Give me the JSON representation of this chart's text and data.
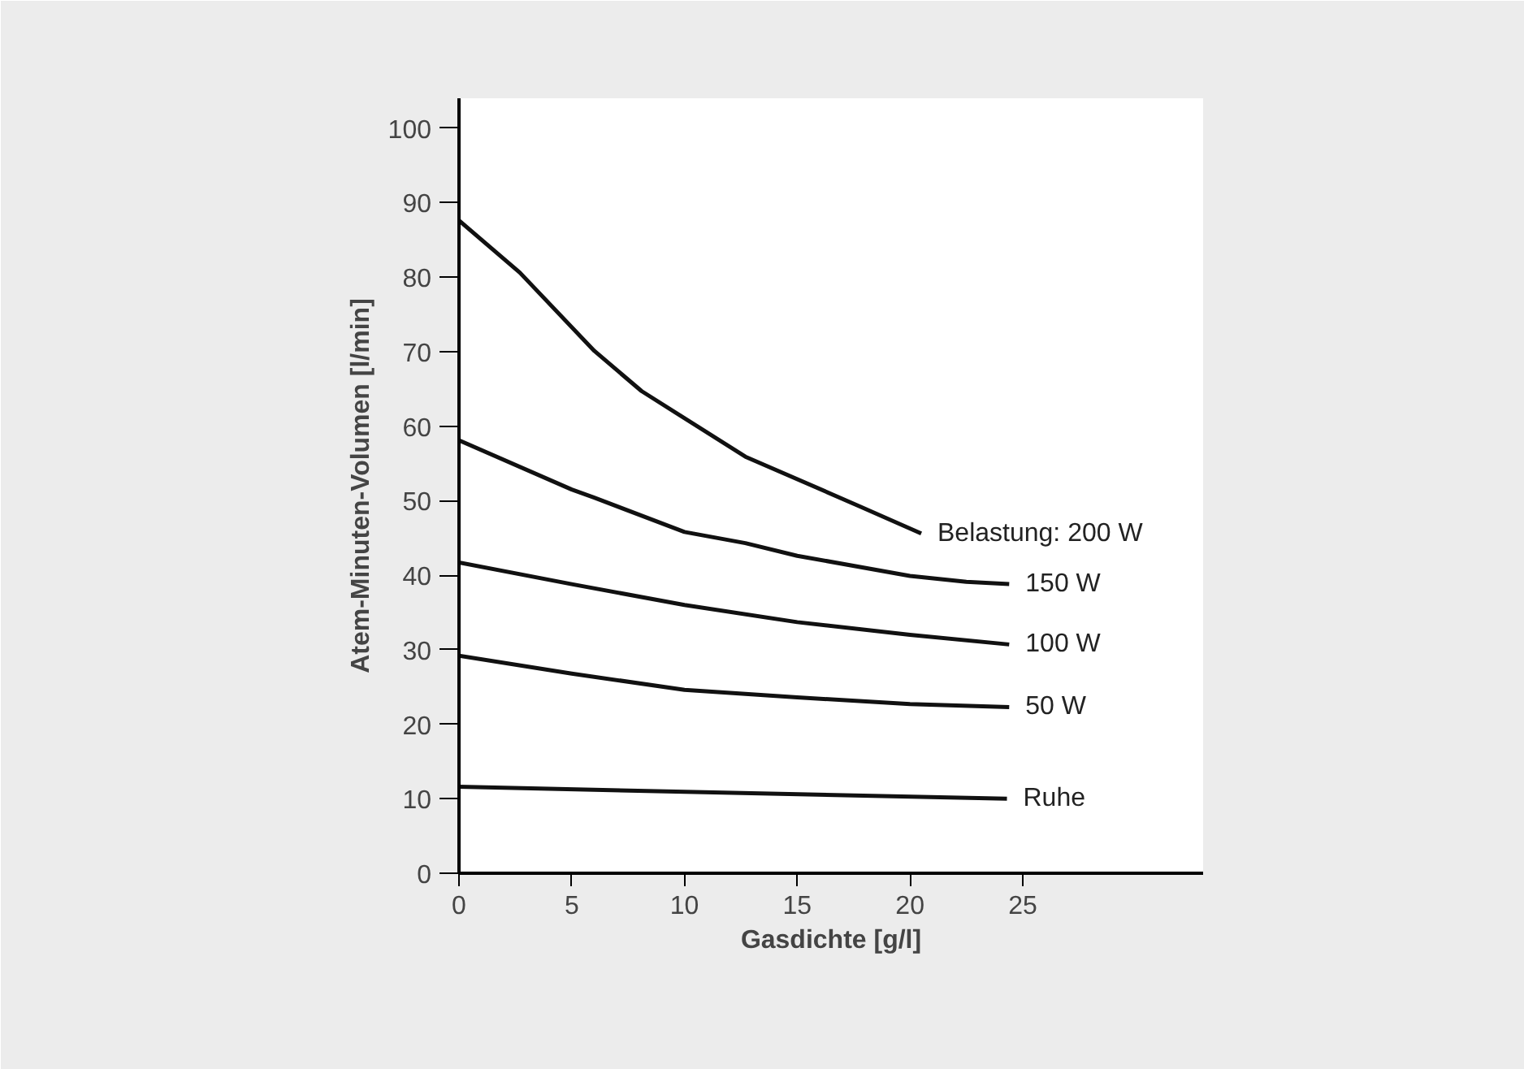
{
  "chart_data": {
    "type": "line",
    "xlabel": "Gasdichte [g/l]",
    "ylabel": "Atem-Minuten-Volumen [l/min]",
    "xlim": [
      0,
      33
    ],
    "ylim": [
      0,
      104
    ],
    "xticks": [
      0,
      5,
      10,
      15,
      20,
      25
    ],
    "yticks": [
      0,
      10,
      20,
      30,
      40,
      50,
      60,
      70,
      80,
      90,
      100
    ],
    "grid": false,
    "marker": "none",
    "line_style": "solid",
    "series": [
      {
        "name": "Belastung: 200 W",
        "color": "#111111",
        "x": [
          0,
          2.7,
          6.0,
          8.1,
          12.7,
          17.8,
          20.5
        ],
        "values": [
          87.6,
          80.6,
          70.1,
          64.7,
          55.9,
          49.2,
          45.6
        ]
      },
      {
        "name": "150 W",
        "color": "#111111",
        "x": [
          0,
          5,
          6,
          10,
          12.7,
          15,
          20,
          22.5,
          24.4
        ],
        "values": [
          58.1,
          51.5,
          50.4,
          45.8,
          44.3,
          42.6,
          39.9,
          39.1,
          38.8
        ]
      },
      {
        "name": "100 W",
        "color": "#111111",
        "x": [
          0,
          5,
          10,
          15,
          20,
          24.4
        ],
        "values": [
          41.7,
          38.8,
          36.0,
          33.7,
          32.0,
          30.7
        ]
      },
      {
        "name": "50 W",
        "color": "#111111",
        "x": [
          0,
          5,
          10,
          15,
          20,
          24.4
        ],
        "values": [
          29.2,
          26.8,
          24.6,
          23.6,
          22.7,
          22.3
        ]
      },
      {
        "name": "Ruhe",
        "color": "#111111",
        "x": [
          0,
          24.3
        ],
        "values": [
          11.6,
          10.0
        ]
      }
    ]
  }
}
